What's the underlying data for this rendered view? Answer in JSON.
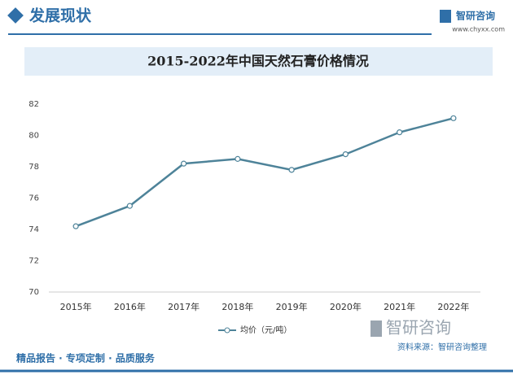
{
  "header": {
    "title": "发展现状",
    "logo": "智研咨询",
    "url": "www.chyxx.com"
  },
  "chart_data": {
    "type": "line",
    "title": "2015-2022年中国天然石膏价格情况",
    "categories": [
      "2015年",
      "2016年",
      "2017年",
      "2018年",
      "2019年",
      "2020年",
      "2021年",
      "2022年"
    ],
    "series": [
      {
        "name": "均价（元/吨）",
        "color": "#4e8399",
        "values": [
          74.2,
          75.5,
          78.2,
          78.5,
          77.8,
          78.8,
          80.2,
          81.1
        ]
      }
    ],
    "ylim": [
      70,
      82
    ],
    "yticks": [
      70,
      72,
      74,
      76,
      78,
      80,
      82
    ],
    "grid": false,
    "legend": "bottom"
  },
  "footer": {
    "left": "精品报告 · 专项定制 · 品质服务",
    "source": "资料来源：智研咨询整理",
    "logo": "智研咨询"
  }
}
